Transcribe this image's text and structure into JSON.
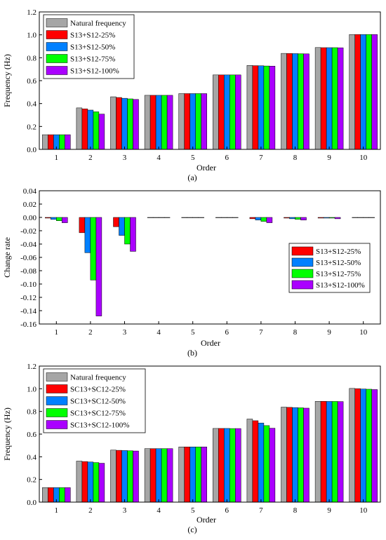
{
  "chart_data": [
    {
      "id": "a",
      "type": "bar",
      "caption": "(a)",
      "xlabel": "Order",
      "ylabel": "Frequency (Hz)",
      "categories": [
        "1",
        "2",
        "3",
        "4",
        "5",
        "6",
        "7",
        "8",
        "9",
        "10"
      ],
      "ylim": [
        0,
        1.2
      ],
      "yticks": [
        "0.0",
        "0.2",
        "0.4",
        "0.6",
        "0.8",
        "1.0",
        "1.2"
      ],
      "legend_position": "top-left",
      "series": [
        {
          "name": "Natural frequency",
          "color": "#a6a6a6",
          "values": [
            0.128,
            0.362,
            0.459,
            0.472,
            0.487,
            0.65,
            0.733,
            0.838,
            0.889,
            1.003
          ]
        },
        {
          "name": "S13+S12-25%",
          "color": "#ff0000",
          "values": [
            0.128,
            0.354,
            0.453,
            0.472,
            0.487,
            0.65,
            0.731,
            0.837,
            0.888,
            1.003
          ]
        },
        {
          "name": "S13+S12-50%",
          "color": "#0080ff",
          "values": [
            0.128,
            0.343,
            0.446,
            0.472,
            0.487,
            0.65,
            0.73,
            0.836,
            0.888,
            1.003
          ]
        },
        {
          "name": "S13+S12-75%",
          "color": "#00ff00",
          "values": [
            0.128,
            0.328,
            0.441,
            0.472,
            0.487,
            0.65,
            0.728,
            0.835,
            0.888,
            1.003
          ]
        },
        {
          "name": "S13+S12-100%",
          "color": "#aa00ff",
          "values": [
            0.128,
            0.308,
            0.436,
            0.472,
            0.487,
            0.65,
            0.727,
            0.834,
            0.887,
            1.003
          ]
        }
      ]
    },
    {
      "id": "b",
      "type": "bar",
      "caption": "(b)",
      "xlabel": "Order",
      "ylabel": "Change rate",
      "categories": [
        "1",
        "2",
        "3",
        "4",
        "5",
        "6",
        "7",
        "8",
        "9",
        "10"
      ],
      "ylim": [
        -0.16,
        0.04
      ],
      "yticks": [
        "-0.16",
        "-0.14",
        "-0.12",
        "-0.10",
        "-0.08",
        "-0.06",
        "-0.04",
        "-0.02",
        "0.00",
        "0.02",
        "0.04"
      ],
      "legend_position": "right",
      "series": [
        {
          "name": "S13+S12-25%",
          "color": "#ff0000",
          "values": [
            -0.001,
            -0.023,
            -0.014,
            0,
            0,
            0,
            -0.002,
            -0.001,
            -0.001,
            0
          ]
        },
        {
          "name": "S13+S12-50%",
          "color": "#0080ff",
          "values": [
            -0.003,
            -0.053,
            -0.027,
            0,
            0,
            0,
            -0.004,
            -0.002,
            -0.001,
            0
          ]
        },
        {
          "name": "S13+S12-75%",
          "color": "#00ff00",
          "values": [
            -0.005,
            -0.094,
            -0.04,
            0,
            0,
            0,
            -0.006,
            -0.003,
            -0.001,
            0
          ]
        },
        {
          "name": "S13+S12-100%",
          "color": "#aa00ff",
          "values": [
            -0.008,
            -0.148,
            -0.051,
            0,
            0,
            0,
            -0.008,
            -0.004,
            -0.002,
            0
          ]
        }
      ]
    },
    {
      "id": "c",
      "type": "bar",
      "caption": "(c)",
      "xlabel": "Order",
      "ylabel": "Frequency (Hz)",
      "categories": [
        "1",
        "2",
        "3",
        "4",
        "5",
        "6",
        "7",
        "8",
        "9",
        "10"
      ],
      "ylim": [
        0,
        1.2
      ],
      "yticks": [
        "0.0",
        "0.2",
        "0.4",
        "0.6",
        "0.8",
        "1.0",
        "1.2"
      ],
      "legend_position": "top-left",
      "series": [
        {
          "name": "Natural frequency",
          "color": "#a6a6a6",
          "values": [
            0.128,
            0.362,
            0.459,
            0.472,
            0.487,
            0.65,
            0.733,
            0.838,
            0.889,
            1.003
          ]
        },
        {
          "name": "SC13+SC12-25%",
          "color": "#ff0000",
          "values": [
            0.128,
            0.358,
            0.457,
            0.472,
            0.487,
            0.65,
            0.718,
            0.836,
            0.889,
            1.001
          ]
        },
        {
          "name": "SC13+SC12-50%",
          "color": "#0080ff",
          "values": [
            0.128,
            0.354,
            0.455,
            0.472,
            0.487,
            0.65,
            0.698,
            0.834,
            0.888,
            0.998
          ]
        },
        {
          "name": "SC13+SC12-75%",
          "color": "#00ff00",
          "values": [
            0.128,
            0.349,
            0.453,
            0.472,
            0.487,
            0.649,
            0.675,
            0.832,
            0.888,
            0.996
          ]
        },
        {
          "name": "SC13+SC12-100%",
          "color": "#aa00ff",
          "values": [
            0.128,
            0.343,
            0.451,
            0.472,
            0.487,
            0.649,
            0.652,
            0.829,
            0.887,
            0.993
          ]
        }
      ]
    }
  ]
}
